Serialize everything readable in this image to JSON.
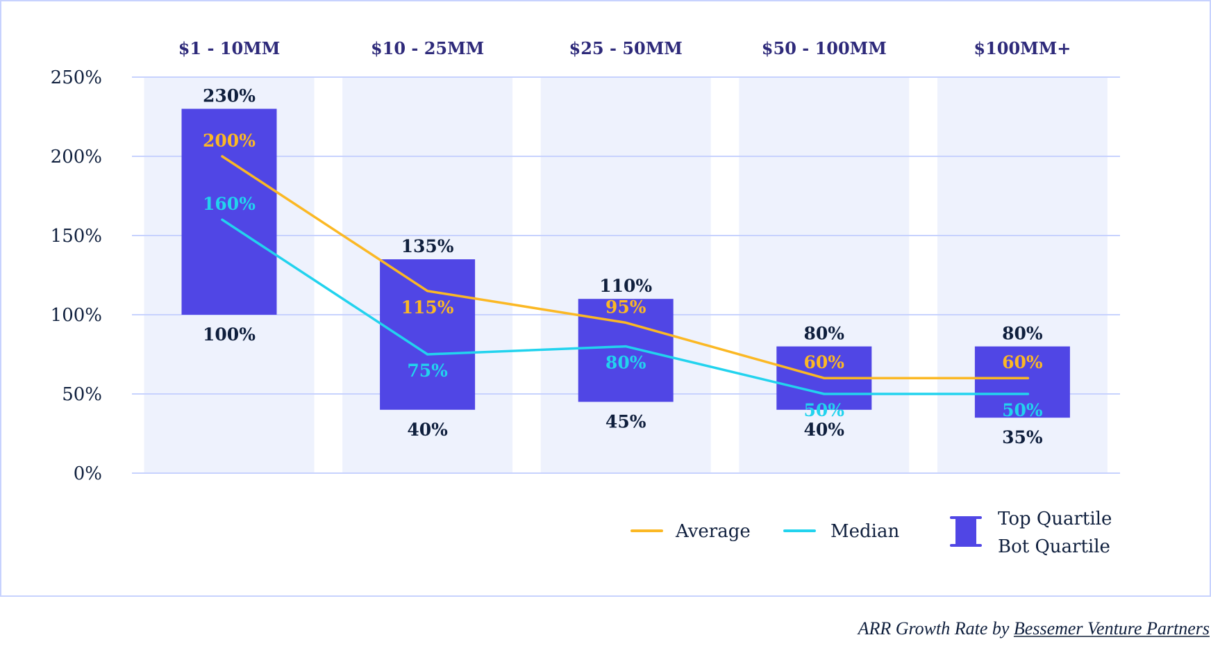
{
  "chart_data": {
    "type": "bar",
    "subtype": "floating-range-with-lines",
    "categories": [
      "$1 - 10MM",
      "$10 - 25MM",
      "$25 - 50MM",
      "$50 - 100MM",
      "$100MM+"
    ],
    "ylim": [
      0,
      250
    ],
    "yticks": [
      0,
      50,
      100,
      150,
      200,
      250
    ],
    "ytick_labels": [
      "0%",
      "50%",
      "100%",
      "150%",
      "200%",
      "250%"
    ],
    "grid": true,
    "legend_placement": "bottom-right",
    "series": [
      {
        "name": "Top Quartile",
        "values": [
          230,
          135,
          110,
          80,
          80
        ],
        "labels": [
          "230%",
          "135%",
          "110%",
          "80%",
          "80%"
        ]
      },
      {
        "name": "Bot Quartile",
        "values": [
          100,
          40,
          45,
          40,
          35
        ],
        "labels": [
          "100%",
          "40%",
          "45%",
          "40%",
          "35%"
        ]
      },
      {
        "name": "Average",
        "values": [
          200,
          115,
          95,
          60,
          60
        ],
        "labels": [
          "200%",
          "115%",
          "95%",
          "60%",
          "60%"
        ]
      },
      {
        "name": "Median",
        "values": [
          160,
          75,
          80,
          50,
          50
        ],
        "labels": [
          "160%",
          "75%",
          "80%",
          "50%",
          "50%"
        ]
      }
    ],
    "legend": {
      "average": "Average",
      "median": "Median",
      "top": "Top Quartile",
      "bot": "Bot Quartile"
    },
    "colors": {
      "bar": "#5046e5",
      "average": "#fbb824",
      "median": "#22d3ee",
      "band": "#eef2fd",
      "grid": "#c7d2fe",
      "text": "#0f1f3d",
      "category": "#2e2a7a"
    }
  },
  "caption": {
    "prefix": "ARR Growth Rate by ",
    "link": "Bessemer Venture Partners"
  }
}
